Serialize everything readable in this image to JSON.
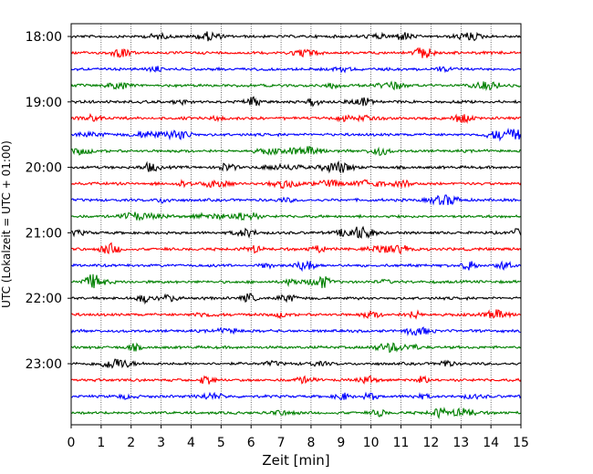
{
  "chart_data": {
    "type": "line",
    "title": "",
    "xlabel": "Zeit  [min]",
    "ylabel": "UTC (Lokalzeit = UTC + 01:00)",
    "xlim": [
      0,
      15
    ],
    "x_ticks": [
      "0",
      "1",
      "2",
      "3",
      "4",
      "5",
      "6",
      "7",
      "8",
      "9",
      "10",
      "11",
      "12",
      "13",
      "14",
      "15"
    ],
    "y_ticks": [
      "18:00",
      "19:00",
      "20:00",
      "21:00",
      "22:00",
      "23:00"
    ],
    "grid": "vertical dotted",
    "trace_interval_min": 15,
    "trace_start": "18:00",
    "trace_end": "23:45",
    "trace_count": 24,
    "trace_colors": [
      "#000000",
      "#ff0000",
      "#0000ff",
      "#008000"
    ]
  }
}
